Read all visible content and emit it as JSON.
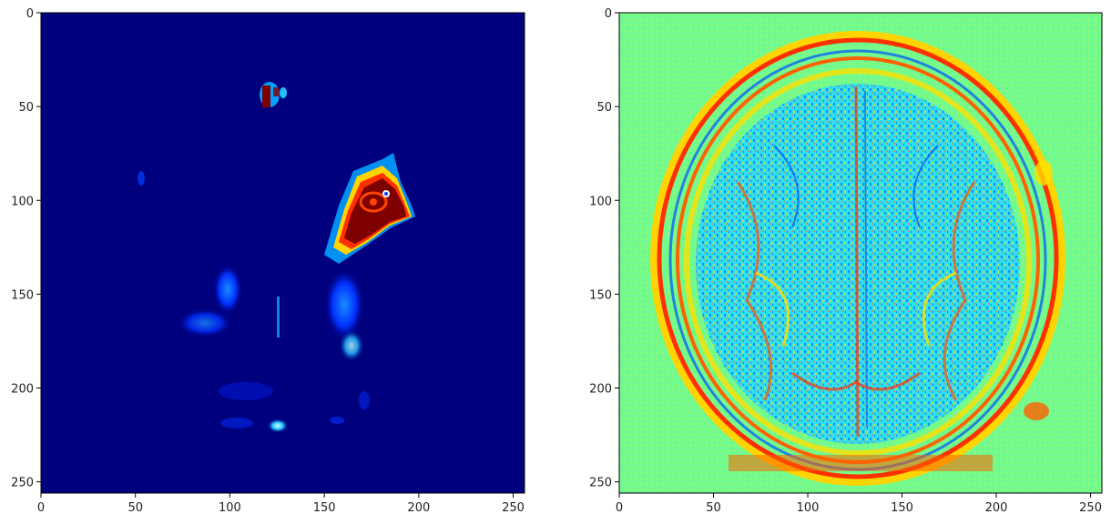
{
  "panels": [
    {
      "id": "left",
      "colormap": "jet",
      "description_shape": "heatmap-overlay",
      "x_ticks": [
        0,
        50,
        100,
        150,
        200,
        250
      ],
      "y_ticks": [
        0,
        50,
        100,
        150,
        200,
        250
      ],
      "x_tick_labels": [
        "0",
        "50",
        "100",
        "150",
        "200",
        "250"
      ],
      "y_tick_labels": [
        "0",
        "50",
        "100",
        "150",
        "200",
        "250"
      ]
    },
    {
      "id": "right",
      "colormap": "jet",
      "description_shape": "edge-map",
      "x_ticks": [
        0,
        50,
        100,
        150,
        200,
        250
      ],
      "y_ticks": [
        0,
        50,
        100,
        150,
        200,
        250
      ],
      "x_tick_labels": [
        "0",
        "50",
        "100",
        "150",
        "200",
        "250"
      ],
      "y_tick_labels": [
        "0",
        "50",
        "100",
        "150",
        "200",
        "250"
      ]
    }
  ],
  "axis_range": [
    0,
    256
  ],
  "colors": {
    "jet_low": "#00007f",
    "jet_mid": "#7fff7f",
    "jet_high": "#7f0000"
  }
}
